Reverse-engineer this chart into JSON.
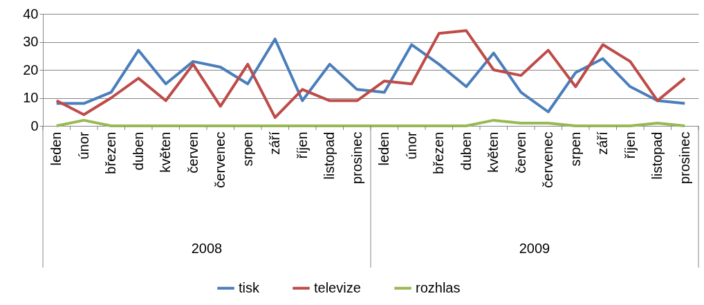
{
  "chart_data": {
    "type": "line",
    "categories": [
      "leden",
      "únor",
      "březen",
      "duben",
      "květen",
      "červen",
      "červenec",
      "srpen",
      "září",
      "říjen",
      "listopad",
      "prosinec",
      "leden",
      "únor",
      "březen",
      "duben",
      "květen",
      "červen",
      "červenec",
      "srpen",
      "září",
      "říjen",
      "listopad",
      "prosinec"
    ],
    "series": [
      {
        "name": "tisk",
        "color": "#4a7ebb",
        "values": [
          8,
          8,
          12,
          27,
          15,
          23,
          21,
          15,
          31,
          9,
          22,
          13,
          12,
          29,
          22,
          14,
          26,
          12,
          5,
          19,
          24,
          14,
          9,
          8
        ]
      },
      {
        "name": "televize",
        "color": "#be4b48",
        "values": [
          9,
          4,
          10,
          17,
          9,
          22,
          7,
          22,
          3,
          13,
          9,
          9,
          16,
          15,
          33,
          34,
          20,
          18,
          27,
          14,
          29,
          23,
          9,
          17
        ]
      },
      {
        "name": "rozhlas",
        "color": "#98b954",
        "values": [
          0,
          2,
          0,
          0,
          0,
          0,
          0,
          0,
          0,
          0,
          0,
          0,
          0,
          0,
          0,
          0,
          2,
          1,
          1,
          0,
          0,
          0,
          1,
          0
        ]
      }
    ],
    "annotations": [
      "2008",
      "2009"
    ],
    "ylim": [
      0,
      40
    ],
    "yticks": [
      0,
      10,
      20,
      30,
      40
    ],
    "grid": "y",
    "legend": "bottom",
    "marker": "none",
    "line_style": "solid"
  }
}
